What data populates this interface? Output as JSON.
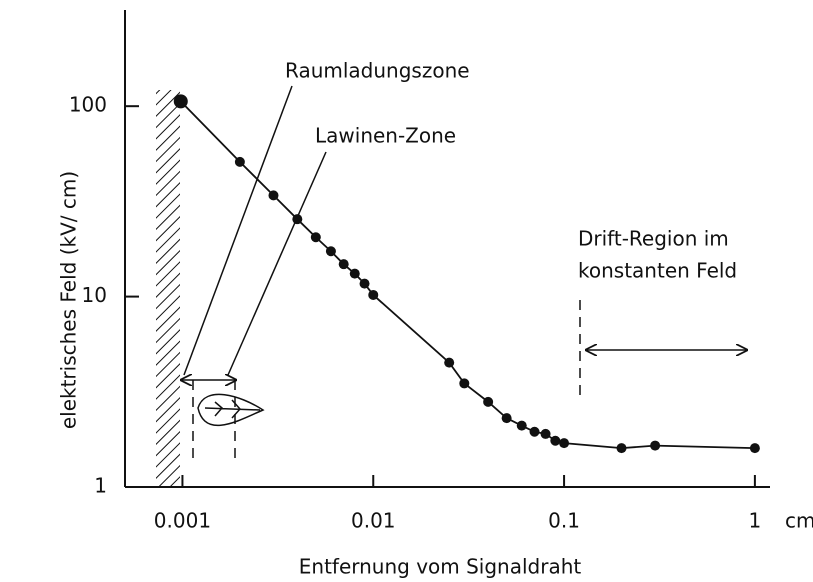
{
  "chart_data": {
    "type": "line",
    "xlabel": "Entfernung vom Signaldraht",
    "ylabel": "elektrisches Feld (kV/ cm)",
    "xunit": "cm",
    "x": [
      0.00098,
      0.002,
      0.003,
      0.004,
      0.005,
      0.006,
      0.007,
      0.008,
      0.009,
      0.01,
      0.025,
      0.03,
      0.04,
      0.05,
      0.06,
      0.07,
      0.08,
      0.09,
      0.1,
      0.2,
      0.3,
      1
    ],
    "series": [
      {
        "color": "#111111",
        "values": [
          106,
          51,
          34,
          25.5,
          20.5,
          17.3,
          14.8,
          13.2,
          11.7,
          10.2,
          4.5,
          3.5,
          2.8,
          2.3,
          2.1,
          1.95,
          1.9,
          1.75,
          1.7,
          1.6,
          1.65,
          1.6
        ]
      }
    ],
    "xlim": [
      0.0005,
      1.2
    ],
    "ylim": [
      1,
      320
    ],
    "xticks": [
      0.001,
      0.01,
      0.1,
      1
    ],
    "yticks": [
      1,
      10,
      100
    ],
    "xscale": "log",
    "yscale": "log",
    "grid": false,
    "annotations": [
      "Raumladungszone",
      "Lawinen-Zone",
      "Drift-Region im",
      "konstanten Feld"
    ]
  }
}
